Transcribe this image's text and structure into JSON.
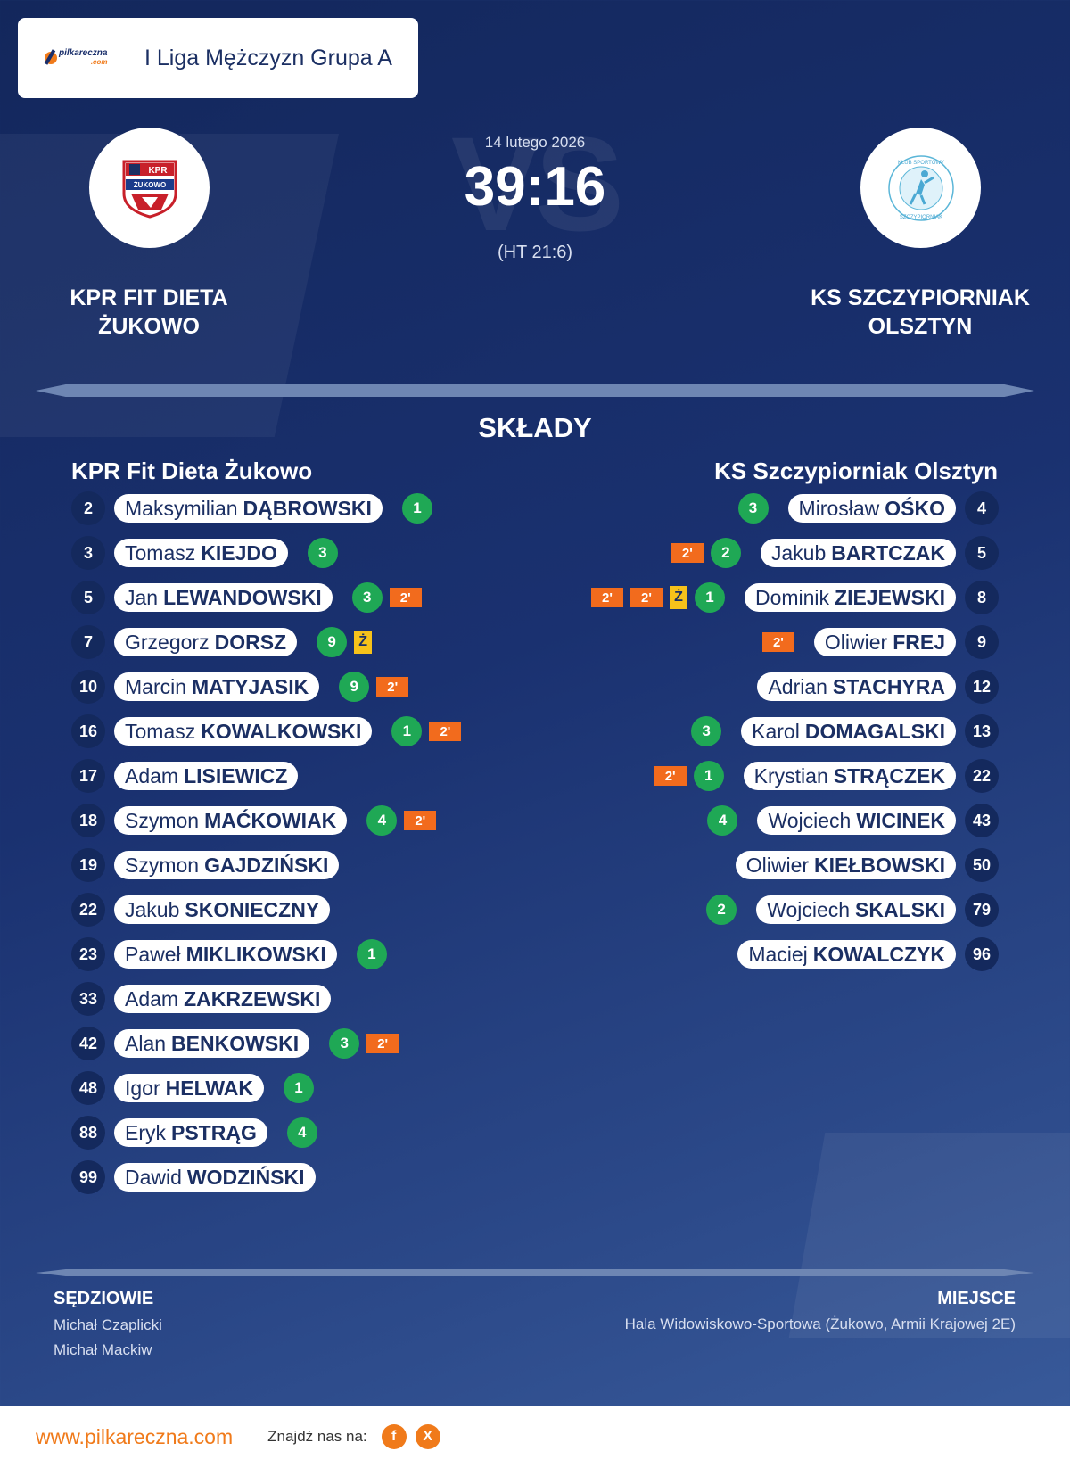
{
  "league": {
    "logo_text": "pilkareczna",
    "logo_sub": ".com",
    "title": "I Liga Mężczyzn Grupa A"
  },
  "match": {
    "vs_text": "VS",
    "date": "14 lutego 2026",
    "score": "39:16",
    "halftime": "(HT 21:6)"
  },
  "home_team": {
    "name_line1": "KPR FIT DIETA",
    "name_line2": "ŻUKOWO",
    "logo_text": "KPR",
    "logo_sub": "ŻUKOWO"
  },
  "away_team": {
    "name_line1": "KS SZCZYPIORNIAK",
    "name_line2": "OLSZTYN",
    "logo_text_top": "KLUB SPORTOWY",
    "logo_text_bottom": "SZCZYPIORNIAK"
  },
  "squads": {
    "title": "SKŁADY",
    "home_heading": "KPR Fit Dieta Żukowo",
    "away_heading": "KS Szczypiorniak Olsztyn",
    "home_players": [
      {
        "number": "2",
        "first": "Maksymilian",
        "last": "DĄBROWSKI",
        "goals": "1",
        "yellow": "",
        "pens": []
      },
      {
        "number": "3",
        "first": "Tomasz",
        "last": "KIEJDO",
        "goals": "3",
        "yellow": "",
        "pens": []
      },
      {
        "number": "5",
        "first": "Jan",
        "last": "LEWANDOWSKI",
        "goals": "3",
        "yellow": "",
        "pens": [
          "2'"
        ]
      },
      {
        "number": "7",
        "first": "Grzegorz",
        "last": "DORSZ",
        "goals": "9",
        "yellow": "Ż",
        "pens": []
      },
      {
        "number": "10",
        "first": "Marcin",
        "last": "MATYJASIK",
        "goals": "9",
        "yellow": "",
        "pens": [
          "2'"
        ]
      },
      {
        "number": "16",
        "first": "Tomasz",
        "last": "KOWALKOWSKI",
        "goals": "1",
        "yellow": "",
        "pens": [
          "2'"
        ]
      },
      {
        "number": "17",
        "first": "Adam",
        "last": "LISIEWICZ",
        "goals": "",
        "yellow": "",
        "pens": []
      },
      {
        "number": "18",
        "first": "Szymon",
        "last": "MAĆKOWIAK",
        "goals": "4",
        "yellow": "",
        "pens": [
          "2'"
        ]
      },
      {
        "number": "19",
        "first": "Szymon",
        "last": "GAJDZIŃSKI",
        "goals": "",
        "yellow": "",
        "pens": []
      },
      {
        "number": "22",
        "first": "Jakub",
        "last": "SKONIECZNY",
        "goals": "",
        "yellow": "",
        "pens": []
      },
      {
        "number": "23",
        "first": "Paweł",
        "last": "MIKLIKOWSKI",
        "goals": "1",
        "yellow": "",
        "pens": []
      },
      {
        "number": "33",
        "first": "Adam",
        "last": "ZAKRZEWSKI",
        "goals": "",
        "yellow": "",
        "pens": []
      },
      {
        "number": "42",
        "first": "Alan",
        "last": "BENKOWSKI",
        "goals": "3",
        "yellow": "",
        "pens": [
          "2'"
        ]
      },
      {
        "number": "48",
        "first": "Igor",
        "last": "HELWAK",
        "goals": "1",
        "yellow": "",
        "pens": []
      },
      {
        "number": "88",
        "first": "Eryk",
        "last": "PSTRĄG",
        "goals": "4",
        "yellow": "",
        "pens": []
      },
      {
        "number": "99",
        "first": "Dawid",
        "last": "WODZIŃSKI",
        "goals": "",
        "yellow": "",
        "pens": []
      }
    ],
    "away_players": [
      {
        "number": "4",
        "first": "Mirosław",
        "last": "OŚKO",
        "goals": "3",
        "yellow": "",
        "pens": []
      },
      {
        "number": "5",
        "first": "Jakub",
        "last": "BARTCZAK",
        "goals": "2",
        "yellow": "",
        "pens": [
          "2'"
        ]
      },
      {
        "number": "8",
        "first": "Dominik",
        "last": "ZIEJEWSKI",
        "goals": "1",
        "yellow": "Ż",
        "pens": [
          "2'",
          "2'"
        ]
      },
      {
        "number": "9",
        "first": "Oliwier",
        "last": "FREJ",
        "goals": "",
        "yellow": "",
        "pens": [
          "2'"
        ]
      },
      {
        "number": "12",
        "first": "Adrian",
        "last": "STACHYRA",
        "goals": "",
        "yellow": "",
        "pens": []
      },
      {
        "number": "13",
        "first": "Karol",
        "last": "DOMAGALSKI",
        "goals": "3",
        "yellow": "",
        "pens": []
      },
      {
        "number": "22",
        "first": "Krystian",
        "last": "STRĄCZEK",
        "goals": "1",
        "yellow": "",
        "pens": [
          "2'"
        ]
      },
      {
        "number": "43",
        "first": "Wojciech",
        "last": "WICINEK",
        "goals": "4",
        "yellow": "",
        "pens": []
      },
      {
        "number": "50",
        "first": "Oliwier",
        "last": "KIEŁBOWSKI",
        "goals": "",
        "yellow": "",
        "pens": []
      },
      {
        "number": "79",
        "first": "Wojciech",
        "last": "SKALSKI",
        "goals": "2",
        "yellow": "",
        "pens": []
      },
      {
        "number": "96",
        "first": "Maciej",
        "last": "KOWALCZYK",
        "goals": "",
        "yellow": "",
        "pens": []
      }
    ]
  },
  "referees": {
    "label": "SĘDZIOWIE",
    "names": [
      "Michał Czaplicki",
      "Michał Mackiw"
    ]
  },
  "venue": {
    "label": "MIEJSCE",
    "name": "Hala Widowiskowo-Sportowa (Żukowo, Armii Krajowej 2E)"
  },
  "footer": {
    "site": "www.pilkareczna.com",
    "find_us": "Znajdź nas na:",
    "social": [
      "f",
      "X"
    ]
  },
  "colors": {
    "background": "#1a3170",
    "goal_badge": "#1fa855",
    "penalty_badge": "#f26b1d",
    "yellow_card": "#f7c21a",
    "accent": "#f07a1a",
    "text_dark": "#1b2f63"
  }
}
